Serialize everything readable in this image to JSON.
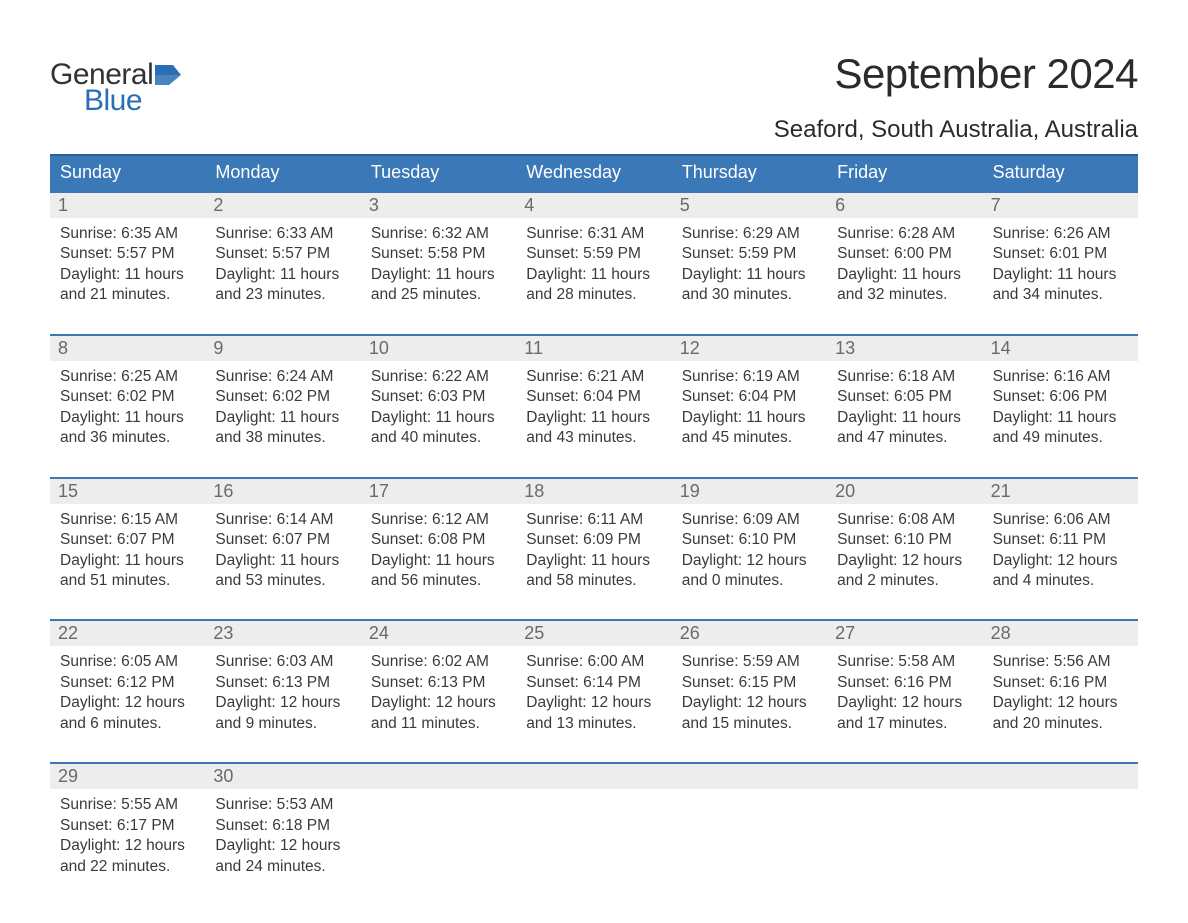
{
  "logo": {
    "text1": "General",
    "text2": "Blue",
    "flag_color": "#2a6fb5",
    "text1_color": "#333333",
    "text2_color": "#2a6fb5"
  },
  "title": "September 2024",
  "location": "Seaford, South Australia, Australia",
  "colors": {
    "header_bg": "#3b78b8",
    "header_border_top": "#2a5f99",
    "week_border_top": "#3b78b8",
    "daynum_bg": "#ededed",
    "daynum_color": "#6a6a6a",
    "text_color": "#3a3a3a",
    "background": "#ffffff"
  },
  "fonts": {
    "title_size_pt": 32,
    "location_size_pt": 18,
    "header_size_pt": 14,
    "cell_size_pt": 12,
    "family": "Arial"
  },
  "day_names": [
    "Sunday",
    "Monday",
    "Tuesday",
    "Wednesday",
    "Thursday",
    "Friday",
    "Saturday"
  ],
  "weeks": [
    [
      {
        "n": "1",
        "sunrise": "6:35 AM",
        "sunset": "5:57 PM",
        "daylight": "11 hours and 21 minutes."
      },
      {
        "n": "2",
        "sunrise": "6:33 AM",
        "sunset": "5:57 PM",
        "daylight": "11 hours and 23 minutes."
      },
      {
        "n": "3",
        "sunrise": "6:32 AM",
        "sunset": "5:58 PM",
        "daylight": "11 hours and 25 minutes."
      },
      {
        "n": "4",
        "sunrise": "6:31 AM",
        "sunset": "5:59 PM",
        "daylight": "11 hours and 28 minutes."
      },
      {
        "n": "5",
        "sunrise": "6:29 AM",
        "sunset": "5:59 PM",
        "daylight": "11 hours and 30 minutes."
      },
      {
        "n": "6",
        "sunrise": "6:28 AM",
        "sunset": "6:00 PM",
        "daylight": "11 hours and 32 minutes."
      },
      {
        "n": "7",
        "sunrise": "6:26 AM",
        "sunset": "6:01 PM",
        "daylight": "11 hours and 34 minutes."
      }
    ],
    [
      {
        "n": "8",
        "sunrise": "6:25 AM",
        "sunset": "6:02 PM",
        "daylight": "11 hours and 36 minutes."
      },
      {
        "n": "9",
        "sunrise": "6:24 AM",
        "sunset": "6:02 PM",
        "daylight": "11 hours and 38 minutes."
      },
      {
        "n": "10",
        "sunrise": "6:22 AM",
        "sunset": "6:03 PM",
        "daylight": "11 hours and 40 minutes."
      },
      {
        "n": "11",
        "sunrise": "6:21 AM",
        "sunset": "6:04 PM",
        "daylight": "11 hours and 43 minutes."
      },
      {
        "n": "12",
        "sunrise": "6:19 AM",
        "sunset": "6:04 PM",
        "daylight": "11 hours and 45 minutes."
      },
      {
        "n": "13",
        "sunrise": "6:18 AM",
        "sunset": "6:05 PM",
        "daylight": "11 hours and 47 minutes."
      },
      {
        "n": "14",
        "sunrise": "6:16 AM",
        "sunset": "6:06 PM",
        "daylight": "11 hours and 49 minutes."
      }
    ],
    [
      {
        "n": "15",
        "sunrise": "6:15 AM",
        "sunset": "6:07 PM",
        "daylight": "11 hours and 51 minutes."
      },
      {
        "n": "16",
        "sunrise": "6:14 AM",
        "sunset": "6:07 PM",
        "daylight": "11 hours and 53 minutes."
      },
      {
        "n": "17",
        "sunrise": "6:12 AM",
        "sunset": "6:08 PM",
        "daylight": "11 hours and 56 minutes."
      },
      {
        "n": "18",
        "sunrise": "6:11 AM",
        "sunset": "6:09 PM",
        "daylight": "11 hours and 58 minutes."
      },
      {
        "n": "19",
        "sunrise": "6:09 AM",
        "sunset": "6:10 PM",
        "daylight": "12 hours and 0 minutes."
      },
      {
        "n": "20",
        "sunrise": "6:08 AM",
        "sunset": "6:10 PM",
        "daylight": "12 hours and 2 minutes."
      },
      {
        "n": "21",
        "sunrise": "6:06 AM",
        "sunset": "6:11 PM",
        "daylight": "12 hours and 4 minutes."
      }
    ],
    [
      {
        "n": "22",
        "sunrise": "6:05 AM",
        "sunset": "6:12 PM",
        "daylight": "12 hours and 6 minutes."
      },
      {
        "n": "23",
        "sunrise": "6:03 AM",
        "sunset": "6:13 PM",
        "daylight": "12 hours and 9 minutes."
      },
      {
        "n": "24",
        "sunrise": "6:02 AM",
        "sunset": "6:13 PM",
        "daylight": "12 hours and 11 minutes."
      },
      {
        "n": "25",
        "sunrise": "6:00 AM",
        "sunset": "6:14 PM",
        "daylight": "12 hours and 13 minutes."
      },
      {
        "n": "26",
        "sunrise": "5:59 AM",
        "sunset": "6:15 PM",
        "daylight": "12 hours and 15 minutes."
      },
      {
        "n": "27",
        "sunrise": "5:58 AM",
        "sunset": "6:16 PM",
        "daylight": "12 hours and 17 minutes."
      },
      {
        "n": "28",
        "sunrise": "5:56 AM",
        "sunset": "6:16 PM",
        "daylight": "12 hours and 20 minutes."
      }
    ],
    [
      {
        "n": "29",
        "sunrise": "5:55 AM",
        "sunset": "6:17 PM",
        "daylight": "12 hours and 22 minutes."
      },
      {
        "n": "30",
        "sunrise": "5:53 AM",
        "sunset": "6:18 PM",
        "daylight": "12 hours and 24 minutes."
      },
      null,
      null,
      null,
      null,
      null
    ]
  ],
  "labels": {
    "sunrise": "Sunrise: ",
    "sunset": "Sunset: ",
    "daylight": "Daylight: "
  }
}
